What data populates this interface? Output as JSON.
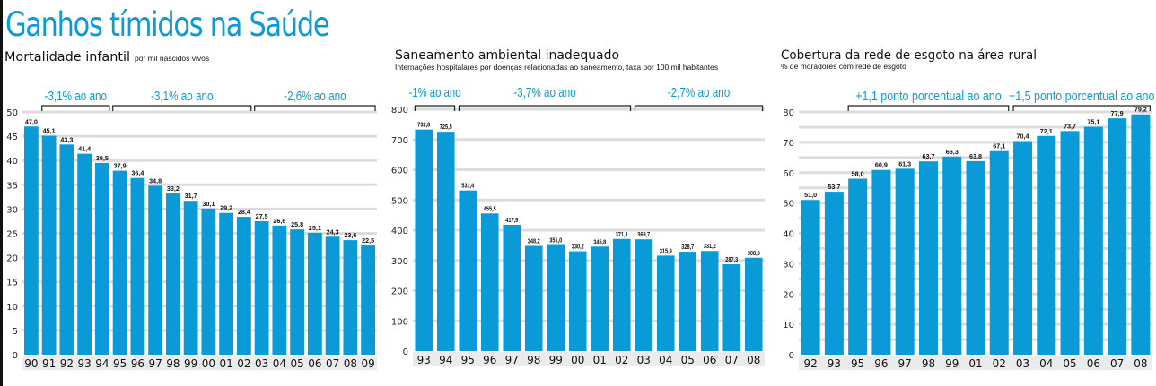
{
  "title": "Ganhos tímidos na Saúde",
  "colors": {
    "bar": "#0a9ad8",
    "title": "#0a9ad8",
    "grid": "#dcdcdc",
    "axis_strip": "#ebebeb"
  },
  "chart_data": [
    {
      "type": "bar",
      "title": "Mortalidade infantil",
      "subtitle": "por mil nascidos vivos",
      "categories": [
        "90",
        "91",
        "92",
        "93",
        "94",
        "95",
        "96",
        "97",
        "98",
        "99",
        "00",
        "01",
        "02",
        "03",
        "04",
        "05",
        "06",
        "07",
        "08",
        "09"
      ],
      "values": [
        47.0,
        45.1,
        43.3,
        41.4,
        39.5,
        37.9,
        36.4,
        34.8,
        33.2,
        31.7,
        30.1,
        29.2,
        28.4,
        27.5,
        26.6,
        25.8,
        25.1,
        24.3,
        23.6,
        22.5
      ],
      "value_labels": [
        "47,0",
        "45,1",
        "43,3",
        "41,4",
        "39,5",
        "37,9",
        "36,4",
        "34,8",
        "33,2",
        "31,7",
        "30,1",
        "29,2",
        "28,4",
        "27,5",
        "26,6",
        "25,8",
        "25,1",
        "24,3",
        "23,6",
        "22,5"
      ],
      "ylim": [
        0,
        50
      ],
      "yticks": [
        "0",
        "5",
        "10",
        "15",
        "20",
        "25",
        "30",
        "35",
        "40",
        "45",
        "50"
      ],
      "grid_step": 5,
      "annotations": [
        {
          "label": "-3,1% ao ano",
          "from": "91",
          "to": "94"
        },
        {
          "label": "-3,1% ao ano",
          "from": "95",
          "to": "02"
        },
        {
          "label": "-2,6% ao ano",
          "from": "03",
          "to": "09"
        }
      ]
    },
    {
      "type": "bar",
      "title": "Saneamento ambiental inadequado",
      "subtitle": "Internações hospitalares por doenças relacionadas ao saneamento, taxa por 100 mil habitantes",
      "categories": [
        "93",
        "94",
        "95",
        "96",
        "97",
        "98",
        "99",
        "00",
        "01",
        "02",
        "03",
        "04",
        "05",
        "06",
        "07",
        "08"
      ],
      "values": [
        732.8,
        725.5,
        531.4,
        455.5,
        417.9,
        348.2,
        351.0,
        330.2,
        345.8,
        371.1,
        369.7,
        315.9,
        328.7,
        331.2,
        287.3,
        308.8
      ],
      "value_labels": [
        "732,8",
        "725,5",
        "531,4",
        "455,5",
        "417,9",
        "348,2",
        "351,0",
        "330,2",
        "345,8",
        "371,1",
        "369,7",
        "315,9",
        "328,7",
        "331,2",
        "287,3",
        "308,8"
      ],
      "ylim": [
        0,
        800
      ],
      "yticks": [
        "0",
        "100",
        "200",
        "300",
        "400",
        "500",
        "600",
        "700",
        "800"
      ],
      "grid_step": 100,
      "annotations": [
        {
          "label": "-1% ao ano",
          "from": "93",
          "to": "94"
        },
        {
          "label": "-3,7% ao ano",
          "from": "95",
          "to": "02"
        },
        {
          "label": "-2,7% ao ano",
          "from": "03",
          "to": "08"
        }
      ]
    },
    {
      "type": "bar",
      "title": "Cobertura da rede de esgoto na área rural",
      "subtitle": "% de moradores com rede de esgoto",
      "categories": [
        "92",
        "93",
        "95",
        "96",
        "97",
        "98",
        "99",
        "01",
        "02",
        "03",
        "04",
        "05",
        "06",
        "07",
        "08"
      ],
      "values": [
        51.0,
        53.7,
        58.0,
        60.9,
        61.3,
        63.7,
        65.3,
        63.8,
        67.1,
        70.4,
        72.1,
        73.7,
        75.1,
        77.9,
        79.2
      ],
      "value_labels": [
        "51,0",
        "53,7",
        "58,0",
        "60,9",
        "61,3",
        "63,7",
        "65,3",
        "63,8",
        "67,1",
        "70,4",
        "72,1",
        "73,7",
        "75,1",
        "77,9",
        "79,2"
      ],
      "ylim": [
        0,
        80
      ],
      "yticks": [
        "0",
        "10",
        "20",
        "30",
        "40",
        "50",
        "60",
        "70",
        "80"
      ],
      "grid_step": 5,
      "annotations": [
        {
          "label": "+1,1 ponto porcentual ao ano",
          "from": "95",
          "to": "02"
        },
        {
          "label": "+1,5 ponto porcentual ao ano",
          "from": "03",
          "to": "08"
        }
      ]
    }
  ]
}
